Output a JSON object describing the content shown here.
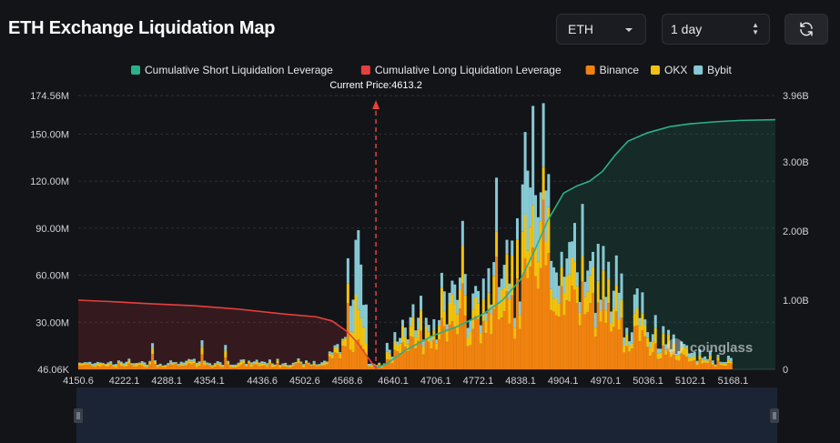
{
  "header": {
    "title": "ETH Exchange Liquidation Map",
    "coin_select": "ETH",
    "range_select": "1 day",
    "refresh_icon": "refresh-icon"
  },
  "watermark": "coinglass",
  "chart_data": {
    "type": "bar",
    "legend_position": "top-center",
    "legend": [
      {
        "name": "Cumulative Short Liquidation Leverage",
        "color": "#2ab08a"
      },
      {
        "name": "Cumulative Long Liquidation Leverage",
        "color": "#e5403f"
      },
      {
        "name": "Binance",
        "color": "#f0820f"
      },
      {
        "name": "OKX",
        "color": "#f1c20d"
      },
      {
        "name": "Bybit",
        "color": "#86c9d4"
      }
    ],
    "current_price_label": "Current Price:4613.2",
    "current_price": 4613.2,
    "x_ticks": [
      "4150.6",
      "4222.1",
      "4288.1",
      "4354.1",
      "4436.6",
      "4502.6",
      "4568.6",
      "4640.1",
      "4706.1",
      "4772.1",
      "4838.1",
      "4904.1",
      "4970.1",
      "5036.1",
      "5102.1",
      "5168.1"
    ],
    "x_range": [
      4150.6,
      5234
    ],
    "y_left_ticks": [
      "46.06K",
      "30.00M",
      "60.00M",
      "90.00M",
      "120.00M",
      "150.00M",
      "174.56M"
    ],
    "y_left_values": [
      0.046,
      30,
      60,
      90,
      120,
      150,
      174.56
    ],
    "y_left_range": [
      0,
      174.56
    ],
    "y_right_ticks": [
      "0",
      "1.00B",
      "2.00B",
      "3.00B",
      "3.96B"
    ],
    "y_right_values": [
      0,
      1,
      2,
      3,
      3.96
    ],
    "y_right_range": [
      0,
      3.96
    ],
    "long_cumulative_B": [
      [
        4150.6,
        1.0
      ],
      [
        4200,
        0.98
      ],
      [
        4260,
        0.95
      ],
      [
        4330,
        0.92
      ],
      [
        4400,
        0.87
      ],
      [
        4470,
        0.8
      ],
      [
        4520,
        0.76
      ],
      [
        4545,
        0.7
      ],
      [
        4568,
        0.55
      ],
      [
        4585,
        0.38
      ],
      [
        4600,
        0.18
      ],
      [
        4613,
        0.02
      ]
    ],
    "short_cumulative_B": [
      [
        4613,
        0.02
      ],
      [
        4630,
        0.08
      ],
      [
        4660,
        0.28
      ],
      [
        4700,
        0.48
      ],
      [
        4740,
        0.62
      ],
      [
        4780,
        0.8
      ],
      [
        4810,
        1.0
      ],
      [
        4838,
        1.3
      ],
      [
        4860,
        1.72
      ],
      [
        4880,
        2.15
      ],
      [
        4905,
        2.55
      ],
      [
        4925,
        2.65
      ],
      [
        4945,
        2.72
      ],
      [
        4965,
        2.86
      ],
      [
        4985,
        3.1
      ],
      [
        5005,
        3.3
      ],
      [
        5035,
        3.42
      ],
      [
        5070,
        3.51
      ],
      [
        5100,
        3.55
      ],
      [
        5140,
        3.58
      ],
      [
        5180,
        3.6
      ],
      [
        5234,
        3.61
      ]
    ],
    "exchange_bars_M": [
      {
        "x": 4568.6,
        "binance": 45,
        "okx": 12,
        "bybit": 10
      },
      {
        "x": 4577.0,
        "binance": 20,
        "okx": 30,
        "bybit": 55
      },
      {
        "x": 4640.1,
        "binance": 10,
        "okx": 6,
        "bybit": 4
      },
      {
        "x": 4706.1,
        "binance": 30,
        "okx": 15,
        "bybit": 12
      },
      {
        "x": 4772.1,
        "binance": 35,
        "okx": 18,
        "bybit": 15
      },
      {
        "x": 4838.1,
        "binance": 55,
        "okx": 25,
        "bybit": 20
      },
      {
        "x": 4848.0,
        "binance": 70,
        "okx": 30,
        "bybit": 58
      },
      {
        "x": 4904.1,
        "binance": 60,
        "okx": 20,
        "bybit": 25
      },
      {
        "x": 4970.1,
        "binance": 40,
        "okx": 15,
        "bybit": 20
      },
      {
        "x": 5036.1,
        "binance": 18,
        "okx": 10,
        "bybit": 8
      },
      {
        "x": 5102.1,
        "binance": 6,
        "okx": 4,
        "bybit": 3
      },
      {
        "x": 5168.1,
        "binance": 4,
        "okx": 2,
        "bybit": 2
      }
    ]
  }
}
